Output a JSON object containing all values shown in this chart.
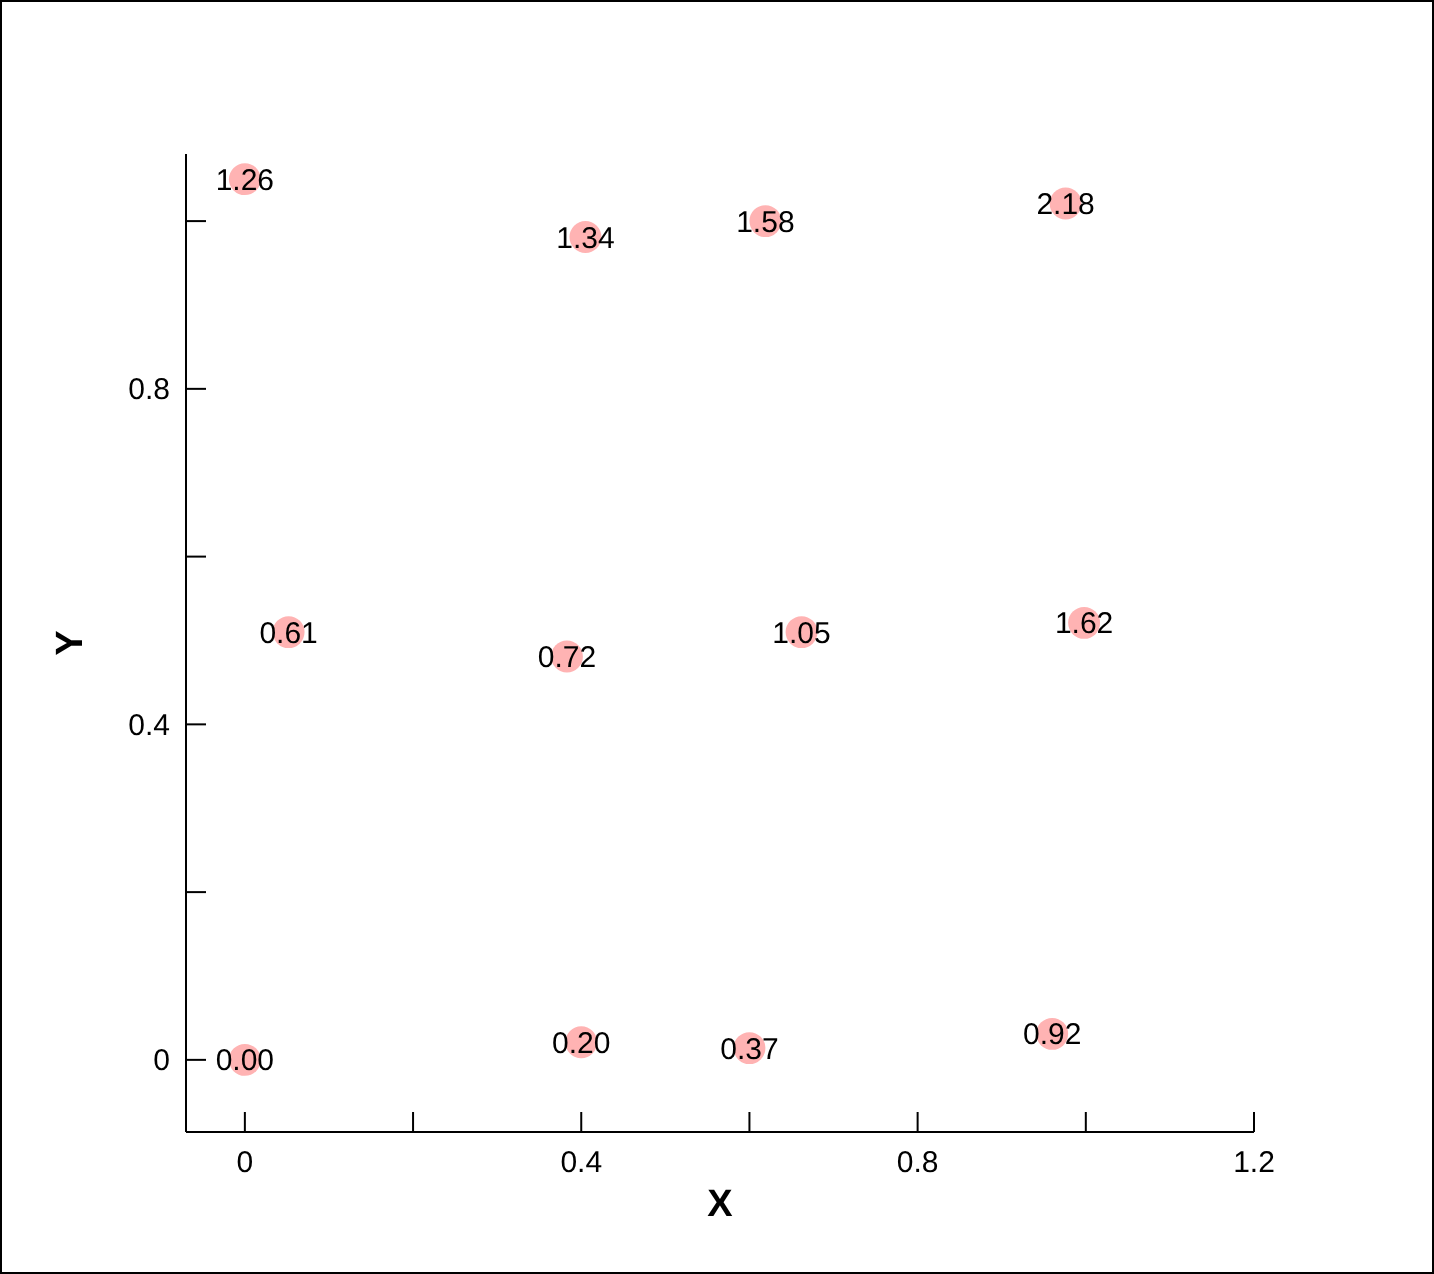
{
  "chart_data": {
    "type": "scatter",
    "xlabel": "X",
    "ylabel": "Y",
    "xlim": [
      -0.07,
      1.2
    ],
    "ylim": [
      -0.086,
      1.08
    ],
    "xticks": [
      0,
      {
        "value": 0.2,
        "label": null
      },
      0.4,
      {
        "value": 0.6,
        "label": null
      },
      0.8,
      {
        "value": 1.0,
        "label": null
      },
      1.2
    ],
    "yticks": [
      0,
      {
        "value": 0.2,
        "label": null
      },
      0.4,
      {
        "value": 0.6,
        "label": null
      },
      0.8,
      {
        "value": 1.0,
        "label": null
      }
    ],
    "grid": false,
    "marker": "circle",
    "series": [
      {
        "color": "#ffb3b3",
        "x": [
          0,
          0.405,
          0.619,
          0.976,
          0.052,
          0.383,
          0.662,
          0.998,
          0,
          0.4,
          0.6,
          0.96
        ],
        "values": [
          1.05,
          0.981,
          1.0,
          1.021,
          0.51,
          0.481,
          0.51,
          0.521,
          0,
          0.021,
          0.014,
          0.031
        ]
      }
    ],
    "annotations": [
      {
        "text": "1.26",
        "x": 0,
        "y": 1.05
      },
      {
        "text": "1.34",
        "x": 0.405,
        "y": 0.981
      },
      {
        "text": "1.58",
        "x": 0.619,
        "y": 1.0
      },
      {
        "text": "2.18",
        "x": 0.976,
        "y": 1.021
      },
      {
        "text": "0.61",
        "x": 0.052,
        "y": 0.51
      },
      {
        "text": "0.72",
        "x": 0.383,
        "y": 0.481
      },
      {
        "text": "1.05",
        "x": 0.662,
        "y": 0.51
      },
      {
        "text": "1.62",
        "x": 0.998,
        "y": 0.521
      },
      {
        "text": "0.00",
        "x": 0,
        "y": 0
      },
      {
        "text": "0.20",
        "x": 0.4,
        "y": 0.021
      },
      {
        "text": "0.37",
        "x": 0.6,
        "y": 0.014
      },
      {
        "text": "0.92",
        "x": 0.96,
        "y": 0.031
      }
    ]
  }
}
